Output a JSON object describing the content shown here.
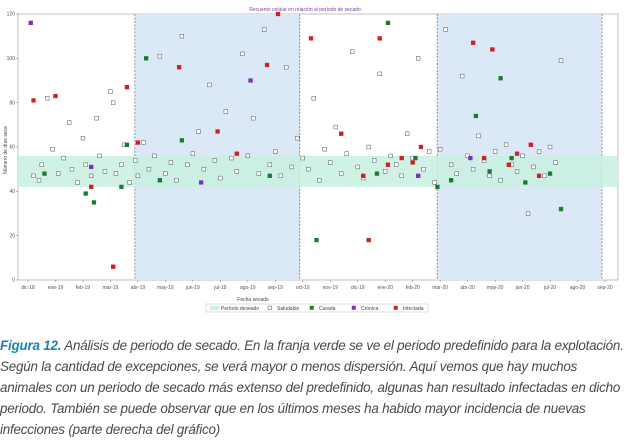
{
  "chart_data": {
    "type": "scatter",
    "title": "Recuento celular en relación al período de secado",
    "xlabel": "Fecha secado",
    "ylabel": "Número de días seca",
    "ylim": [
      0,
      120
    ],
    "y_ticks": [
      0,
      20,
      40,
      60,
      80,
      100,
      120
    ],
    "x_months": [
      "dic-18",
      "ene-19",
      "feb-19",
      "mar-19",
      "abr-19",
      "may-19",
      "jun-19",
      "jul-19",
      "ago-19",
      "sep-19",
      "oct-19",
      "nov-19",
      "dic-19",
      "ene-20",
      "feb-20",
      "mar-20",
      "abr-20",
      "may-20",
      "jun-20",
      "jul-20",
      "ago-20",
      "sep-20"
    ],
    "x_tick_labels": [
      "dic-18",
      "ene-19",
      "feb-19",
      "mar-19",
      "abr-19",
      "may-19",
      "jun-19",
      "jul-19",
      "ago-19",
      "sep-19",
      "oct-19",
      "nov-19",
      "dic-19",
      "ene-20",
      "feb-20",
      "mar-20",
      "abr-20",
      "may-20",
      "jun-20",
      "jul-20",
      "ago-20",
      "sep-20"
    ],
    "desired_band": [
      42,
      56
    ],
    "shaded_periods": [
      [
        "abr-19",
        "oct-19"
      ],
      [
        "mar-20",
        "sep-20"
      ]
    ],
    "grid": false,
    "legend_placement": "bottom",
    "legend": [
      {
        "label": "Período deseado",
        "kind": "band",
        "color": "#c8f0e0"
      },
      {
        "label": "Saludable",
        "kind": "marker",
        "color": "#ffffff"
      },
      {
        "label": "Curada",
        "kind": "marker",
        "color": "#1a7a2e"
      },
      {
        "label": "Crónica",
        "kind": "marker",
        "color": "#7a2fc0"
      },
      {
        "label": "Infectada",
        "kind": "marker",
        "color": "#d01f1f"
      }
    ],
    "series": [
      {
        "name": "Saludable",
        "color": "#ffffff",
        "points": [
          [
            0.2,
            47
          ],
          [
            0.4,
            45
          ],
          [
            0.5,
            52
          ],
          [
            0.7,
            82
          ],
          [
            0.9,
            59
          ],
          [
            1.1,
            48
          ],
          [
            1.3,
            55
          ],
          [
            1.5,
            71
          ],
          [
            1.6,
            50
          ],
          [
            1.8,
            44
          ],
          [
            2.0,
            64
          ],
          [
            2.1,
            52
          ],
          [
            2.3,
            47
          ],
          [
            2.5,
            73
          ],
          [
            2.6,
            56
          ],
          [
            2.8,
            49
          ],
          [
            3.0,
            85
          ],
          [
            3.1,
            80
          ],
          [
            3.2,
            48
          ],
          [
            3.4,
            52
          ],
          [
            3.5,
            61
          ],
          [
            3.7,
            44
          ],
          [
            3.9,
            54
          ],
          [
            4.0,
            47
          ],
          [
            4.2,
            62
          ],
          [
            4.4,
            50
          ],
          [
            4.6,
            56
          ],
          [
            4.8,
            101
          ],
          [
            5.0,
            48
          ],
          [
            5.2,
            53
          ],
          [
            5.4,
            45
          ],
          [
            5.6,
            110
          ],
          [
            5.8,
            52
          ],
          [
            6.0,
            57
          ],
          [
            6.2,
            67
          ],
          [
            6.4,
            50
          ],
          [
            6.6,
            88
          ],
          [
            6.8,
            54
          ],
          [
            7.0,
            46
          ],
          [
            7.2,
            76
          ],
          [
            7.4,
            55
          ],
          [
            7.6,
            49
          ],
          [
            7.8,
            102
          ],
          [
            8.0,
            56
          ],
          [
            8.2,
            73
          ],
          [
            8.4,
            48
          ],
          [
            8.6,
            113
          ],
          [
            8.8,
            52
          ],
          [
            9.0,
            58
          ],
          [
            9.2,
            47
          ],
          [
            9.4,
            96
          ],
          [
            9.6,
            51
          ],
          [
            9.8,
            64
          ],
          [
            10.0,
            55
          ],
          [
            10.2,
            50
          ],
          [
            10.4,
            82
          ],
          [
            10.6,
            45
          ],
          [
            10.8,
            59
          ],
          [
            11.0,
            53
          ],
          [
            11.2,
            69
          ],
          [
            11.4,
            48
          ],
          [
            11.6,
            57
          ],
          [
            11.8,
            103
          ],
          [
            12.0,
            51
          ],
          [
            12.2,
            46
          ],
          [
            12.4,
            60
          ],
          [
            12.6,
            54
          ],
          [
            12.8,
            93
          ],
          [
            13.0,
            49
          ],
          [
            13.2,
            56
          ],
          [
            13.4,
            52
          ],
          [
            13.6,
            47
          ],
          [
            13.8,
            66
          ],
          [
            14.0,
            55
          ],
          [
            14.2,
            100
          ],
          [
            14.4,
            50
          ],
          [
            14.6,
            58
          ],
          [
            14.8,
            44
          ],
          [
            15.0,
            59
          ],
          [
            15.2,
            113
          ],
          [
            15.4,
            52
          ],
          [
            15.6,
            48
          ],
          [
            15.8,
            92
          ],
          [
            16.0,
            56
          ],
          [
            16.2,
            50
          ],
          [
            16.4,
            65
          ],
          [
            16.6,
            54
          ],
          [
            16.8,
            47
          ],
          [
            17.0,
            58
          ],
          [
            17.2,
            45
          ],
          [
            17.4,
            61
          ],
          [
            17.6,
            52
          ],
          [
            17.8,
            49
          ],
          [
            18.0,
            56
          ],
          [
            18.2,
            30
          ],
          [
            18.4,
            51
          ],
          [
            18.6,
            58
          ],
          [
            18.8,
            47
          ],
          [
            19.0,
            60
          ],
          [
            19.2,
            53
          ],
          [
            19.4,
            99
          ]
        ]
      },
      {
        "name": "Curada",
        "color": "#1a7a2e",
        "points": [
          [
            0.6,
            48
          ],
          [
            2.1,
            39
          ],
          [
            2.4,
            35
          ],
          [
            3.4,
            42
          ],
          [
            3.6,
            61
          ],
          [
            4.3,
            100
          ],
          [
            4.8,
            45
          ],
          [
            5.6,
            63
          ],
          [
            8.8,
            47
          ],
          [
            10.5,
            18
          ],
          [
            12.7,
            48
          ],
          [
            13.1,
            116
          ],
          [
            14.1,
            55
          ],
          [
            14.9,
            42
          ],
          [
            15.4,
            45
          ],
          [
            16.3,
            74
          ],
          [
            16.8,
            49
          ],
          [
            17.2,
            91
          ],
          [
            17.6,
            55
          ],
          [
            18.1,
            44
          ],
          [
            19.0,
            48
          ],
          [
            19.4,
            32
          ]
        ]
      },
      {
        "name": "Crónica",
        "color": "#7a2fc0",
        "points": [
          [
            0.1,
            116
          ],
          [
            2.3,
            51
          ],
          [
            6.3,
            44
          ],
          [
            8.1,
            90
          ],
          [
            14.2,
            47
          ],
          [
            16.1,
            55
          ]
        ]
      },
      {
        "name": "Infectada",
        "color": "#d01f1f",
        "points": [
          [
            0.2,
            81
          ],
          [
            1.0,
            83
          ],
          [
            2.3,
            42
          ],
          [
            3.1,
            6
          ],
          [
            3.6,
            87
          ],
          [
            4.0,
            62
          ],
          [
            5.5,
            96
          ],
          [
            6.9,
            67
          ],
          [
            7.6,
            57
          ],
          [
            8.7,
            97
          ],
          [
            9.1,
            120
          ],
          [
            10.3,
            109
          ],
          [
            11.4,
            66
          ],
          [
            12.2,
            47
          ],
          [
            12.4,
            18
          ],
          [
            12.8,
            109
          ],
          [
            13.1,
            52
          ],
          [
            13.6,
            55
          ],
          [
            14.0,
            53
          ],
          [
            14.3,
            60
          ],
          [
            16.2,
            107
          ],
          [
            16.6,
            55
          ],
          [
            16.9,
            104
          ],
          [
            17.5,
            52
          ],
          [
            17.8,
            57
          ],
          [
            18.3,
            61
          ],
          [
            18.6,
            47
          ]
        ]
      }
    ]
  },
  "caption": {
    "label": "Figura 12.",
    "text": " Análisis de periodo de secado. En la franja verde se ve el periodo predefinido para la explotación. Según la cantidad de excepciones, se verá mayor o menos dispersión. Aquí vemos que hay muchos animales con un periodo de secado más extenso del predefinido, algunas han resultado infectadas en dicho periodo. También se puede observar que en los últimos meses ha habido mayor incidencia de nuevas infecciones (parte derecha del gráfico)"
  }
}
